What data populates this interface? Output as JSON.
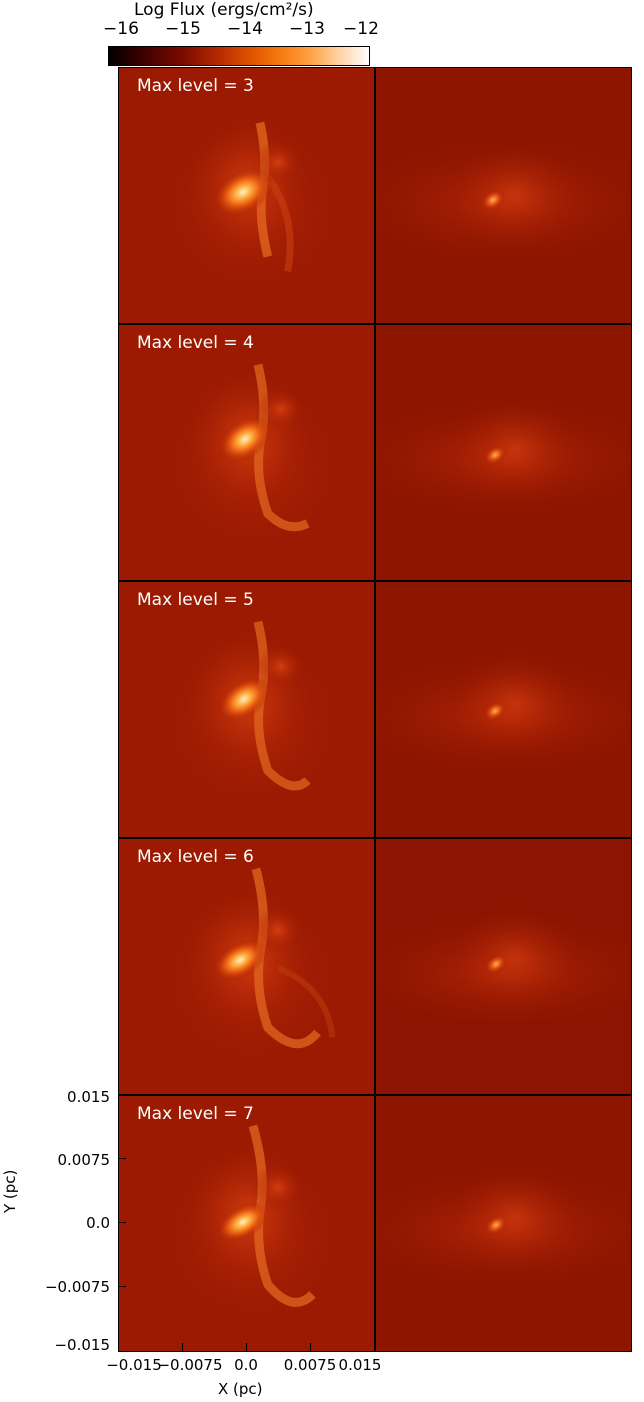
{
  "colorbar": {
    "title": "Log Flux (ergs/cm²/s)",
    "ticks": [
      "−16",
      "−15",
      "−14",
      "−13",
      "−12"
    ],
    "colormap": [
      "#000000",
      "#7a0a00",
      "#e05500",
      "#ffa040",
      "#ffffff"
    ]
  },
  "panels": [
    {
      "label": "Max level = 3"
    },
    {
      "label": "Max level = 4"
    },
    {
      "label": "Max level = 5"
    },
    {
      "label": "Max level = 6"
    },
    {
      "label": "Max level = 7"
    }
  ],
  "axes": {
    "x_title": "X (pc)",
    "y_title": "Y (pc)",
    "x_ticks": [
      "−0.015",
      "−0.0075",
      "0.0",
      "0.0075",
      "0.015"
    ],
    "y_ticks": [
      "0.015",
      "0.0075",
      "0.0",
      "−0.0075",
      "−0.015"
    ]
  }
}
